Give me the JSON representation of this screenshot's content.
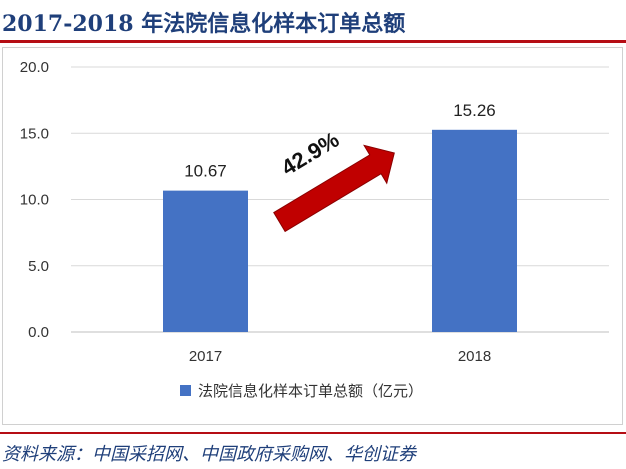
{
  "header": {
    "title": "2017-2018 年法院信息化样本订单总额"
  },
  "footer": {
    "source": "资料来源：中国采招网、中国政府采购网、华创证券"
  },
  "chart_data": {
    "type": "bar",
    "categories": [
      "2017",
      "2018"
    ],
    "series": [
      {
        "name": "法院信息化样本订单总额（亿元）",
        "values": [
          10.67,
          15.26
        ],
        "color": "#4472c4"
      }
    ],
    "data_labels": [
      "10.67",
      "15.26"
    ],
    "ylim": [
      0,
      20
    ],
    "yticks": [
      0,
      5,
      10,
      15,
      20
    ],
    "ytick_labels": [
      "0.0",
      "5.0",
      "10.0",
      "15.0",
      "20.0"
    ],
    "grid": true,
    "legend_position": "bottom",
    "annotation": {
      "text": "42.9%",
      "arrow_color": "#c00000"
    },
    "title": "",
    "xlabel": "",
    "ylabel": ""
  }
}
